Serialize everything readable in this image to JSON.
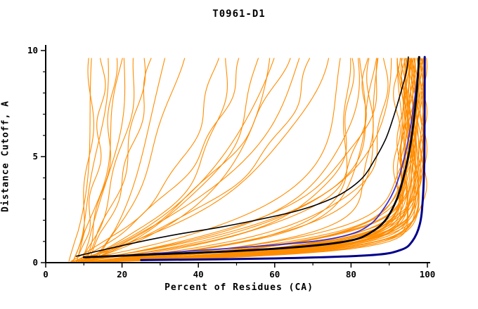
{
  "chart_data": {
    "type": "line",
    "title": "T0961-D1",
    "xlabel": "Percent of Residues (CA)",
    "ylabel": "Distance Cutoff, A",
    "xlim": [
      0,
      100
    ],
    "ylim": [
      0,
      10
    ],
    "grid": false,
    "legend": "none",
    "xticks_major": [
      0,
      20,
      40,
      60,
      80,
      100
    ],
    "xticks_minor": [
      10,
      30,
      50,
      70,
      90
    ],
    "yticks_major": [
      0,
      5,
      10
    ],
    "yticks_minor": [
      1,
      2,
      3,
      4,
      6,
      7,
      8,
      9
    ],
    "colors": {
      "ensemble": "#ff8c00",
      "black_curve": "#000000",
      "blue_curve": "#3a2fd0",
      "navy_curve": "#00008b",
      "axis": "#000000",
      "background": "#ffffff"
    },
    "series": {
      "ensemble": {
        "name": "model-curves-orange",
        "color": "#ff8c00",
        "count": 70,
        "params_format": [
          "x_at_y0",
          "x_at_y10",
          "tau_shape"
        ],
        "params": [
          [
            6,
            13,
            6
          ],
          [
            7,
            16,
            5
          ],
          [
            8,
            20,
            7
          ],
          [
            9,
            24,
            6
          ],
          [
            10,
            18,
            4
          ],
          [
            11,
            28,
            8
          ],
          [
            8,
            15,
            3.5
          ],
          [
            12,
            32,
            7
          ],
          [
            9,
            21,
            5
          ],
          [
            13,
            36,
            9
          ],
          [
            7,
            12,
            2.5
          ],
          [
            10,
            26,
            5.5
          ],
          [
            6,
            45,
            4
          ],
          [
            7,
            52,
            5
          ],
          [
            8,
            60,
            4.5
          ],
          [
            9,
            68,
            5
          ],
          [
            6,
            74,
            4
          ],
          [
            10,
            56,
            3.5
          ],
          [
            8,
            48,
            3
          ],
          [
            11,
            64,
            6
          ],
          [
            7,
            70,
            3.8
          ],
          [
            9,
            58,
            2.8
          ],
          [
            5,
            78,
            2.2
          ],
          [
            6,
            82,
            2
          ],
          [
            7,
            86,
            1.8
          ],
          [
            8,
            88,
            2.4
          ],
          [
            6,
            80,
            1.5
          ],
          [
            9,
            84,
            1.6
          ],
          [
            5,
            90,
            2
          ],
          [
            10,
            87,
            1.3
          ],
          [
            7,
            83,
            1.1
          ],
          [
            8,
            79,
            1
          ],
          [
            6,
            85,
            0.9
          ],
          [
            9,
            89,
            1.5
          ],
          [
            4,
            92,
            0.5
          ],
          [
            5,
            94,
            0.6
          ],
          [
            6,
            95,
            0.7
          ],
          [
            7,
            96,
            0.55
          ],
          [
            8,
            97,
            0.45
          ],
          [
            9,
            98,
            0.65
          ],
          [
            5,
            93,
            0.8
          ],
          [
            6,
            96,
            0.9
          ],
          [
            7,
            97,
            0.75
          ],
          [
            8,
            95,
            0.4
          ],
          [
            4,
            96,
            0.5
          ],
          [
            5,
            97,
            0.62
          ],
          [
            6,
            98,
            0.48
          ],
          [
            7,
            94,
            0.85
          ],
          [
            8,
            96,
            1
          ],
          [
            9,
            97,
            0.58
          ],
          [
            4,
            98,
            0.7
          ],
          [
            5,
            95,
            0.52
          ],
          [
            6,
            93,
            0.45
          ],
          [
            7,
            98,
            0.66
          ],
          [
            8,
            94,
            0.72
          ],
          [
            9,
            96,
            0.5
          ],
          [
            4,
            97,
            0.9
          ],
          [
            5,
            98,
            0.55
          ],
          [
            6,
            97,
            0.42
          ],
          [
            7,
            95,
            0.6
          ],
          [
            8,
            98,
            0.8
          ],
          [
            9,
            95,
            1.1
          ],
          [
            5,
            96,
            0.38
          ],
          [
            6,
            94,
            0.58
          ],
          [
            7,
            93,
            0.52
          ],
          [
            8,
            97,
            0.95
          ],
          [
            4,
            95,
            0.65
          ],
          [
            9,
            94,
            0.48
          ],
          [
            5,
            99,
            0.6
          ],
          [
            6,
            99,
            0.5
          ]
        ]
      },
      "highlight_curves": [
        {
          "name": "black-thick",
          "color": "#000000",
          "width": 2.8,
          "points": [
            [
              10,
              0.25
            ],
            [
              30,
              0.4
            ],
            [
              50,
              0.55
            ],
            [
              70,
              0.8
            ],
            [
              80,
              1.05
            ],
            [
              85,
              1.4
            ],
            [
              89,
              2.0
            ],
            [
              92,
              3.0
            ],
            [
              94,
              4.2
            ],
            [
              95.5,
              5.5
            ],
            [
              96.5,
              6.8
            ],
            [
              97.3,
              8.2
            ],
            [
              97.8,
              9.7
            ]
          ]
        },
        {
          "name": "black-thin",
          "color": "#000000",
          "width": 1.6,
          "points": [
            [
              8,
              0.3
            ],
            [
              15,
              0.6
            ],
            [
              25,
              1.0
            ],
            [
              35,
              1.35
            ],
            [
              45,
              1.65
            ],
            [
              55,
              2.0
            ],
            [
              65,
              2.4
            ],
            [
              72,
              2.8
            ],
            [
              78,
              3.3
            ],
            [
              83,
              4.0
            ],
            [
              86,
              4.8
            ],
            [
              89,
              5.8
            ],
            [
              91,
              6.8
            ],
            [
              93,
              8.0
            ],
            [
              94.5,
              9.0
            ],
            [
              95,
              9.7
            ]
          ]
        },
        {
          "name": "blue-violet",
          "color": "#3a2fd0",
          "width": 1.8,
          "points": [
            [
              12,
              0.25
            ],
            [
              30,
              0.45
            ],
            [
              50,
              0.7
            ],
            [
              70,
              1.0
            ],
            [
              80,
              1.35
            ],
            [
              85,
              1.8
            ],
            [
              88,
              2.4
            ],
            [
              91,
              3.3
            ],
            [
              93,
              4.3
            ],
            [
              95,
              5.8
            ],
            [
              96.5,
              7.5
            ],
            [
              97.5,
              9.0
            ],
            [
              98,
              9.7
            ]
          ]
        },
        {
          "name": "navy-right",
          "color": "#00008b",
          "width": 3,
          "points": [
            [
              25,
              0.12
            ],
            [
              60,
              0.2
            ],
            [
              85,
              0.35
            ],
            [
              93,
              0.6
            ],
            [
              96,
              1.0
            ],
            [
              98,
              1.8
            ],
            [
              98.8,
              3.0
            ],
            [
              99.2,
              5.0
            ],
            [
              99.3,
              9.7
            ]
          ]
        }
      ]
    }
  }
}
